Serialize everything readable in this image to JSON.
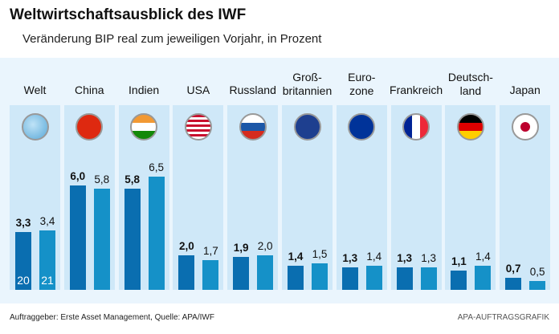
{
  "header": {
    "title": "Weltwirtschaftsausblick des IWF",
    "subtitle": "Veränderung BIP real zum jeweiligen Vorjahr, in Prozent"
  },
  "chart_data": {
    "type": "bar",
    "title": "Weltwirtschaftsausblick des IWF",
    "subtitle": "Veränderung BIP real zum jeweiligen Vorjahr, in Prozent",
    "categories": [
      "Welt",
      "China",
      "Indien",
      "USA",
      "Russland",
      "Groß-\nbritannien",
      "Euro-\nzone",
      "Frankreich",
      "Deutsch-\nland",
      "Japan"
    ],
    "series": [
      {
        "name": "20",
        "values": [
          3.3,
          6.0,
          5.8,
          2.0,
          1.9,
          1.4,
          1.3,
          1.3,
          1.1,
          0.7
        ],
        "labels": [
          "3,3",
          "6,0",
          "5,8",
          "2,0",
          "1,9",
          "1,4",
          "1,3",
          "1,3",
          "1,1",
          "0,7"
        ],
        "color": "#0a6eb0"
      },
      {
        "name": "21",
        "values": [
          3.4,
          5.8,
          6.5,
          1.7,
          2.0,
          1.5,
          1.4,
          1.3,
          1.4,
          0.5
        ],
        "labels": [
          "3,4",
          "5,8",
          "6,5",
          "1,7",
          "2,0",
          "1,5",
          "1,4",
          "1,3",
          "1,4",
          "0,5"
        ],
        "color": "#1591c8"
      }
    ],
    "icons": [
      "globe-icon",
      "china-flag-icon",
      "india-flag-icon",
      "usa-flag-icon",
      "russia-flag-icon",
      "uk-flag-icon",
      "eu-flag-icon",
      "france-flag-icon",
      "germany-flag-icon",
      "japan-flag-icon"
    ],
    "ylim": [
      0,
      7
    ],
    "grid": false,
    "legend": "inside first bars"
  },
  "footer": {
    "source": "Auftraggeber: Erste Asset Management, Quelle: APA/IWF",
    "credit": "APA-AUFTRAGSGRAFIK"
  }
}
